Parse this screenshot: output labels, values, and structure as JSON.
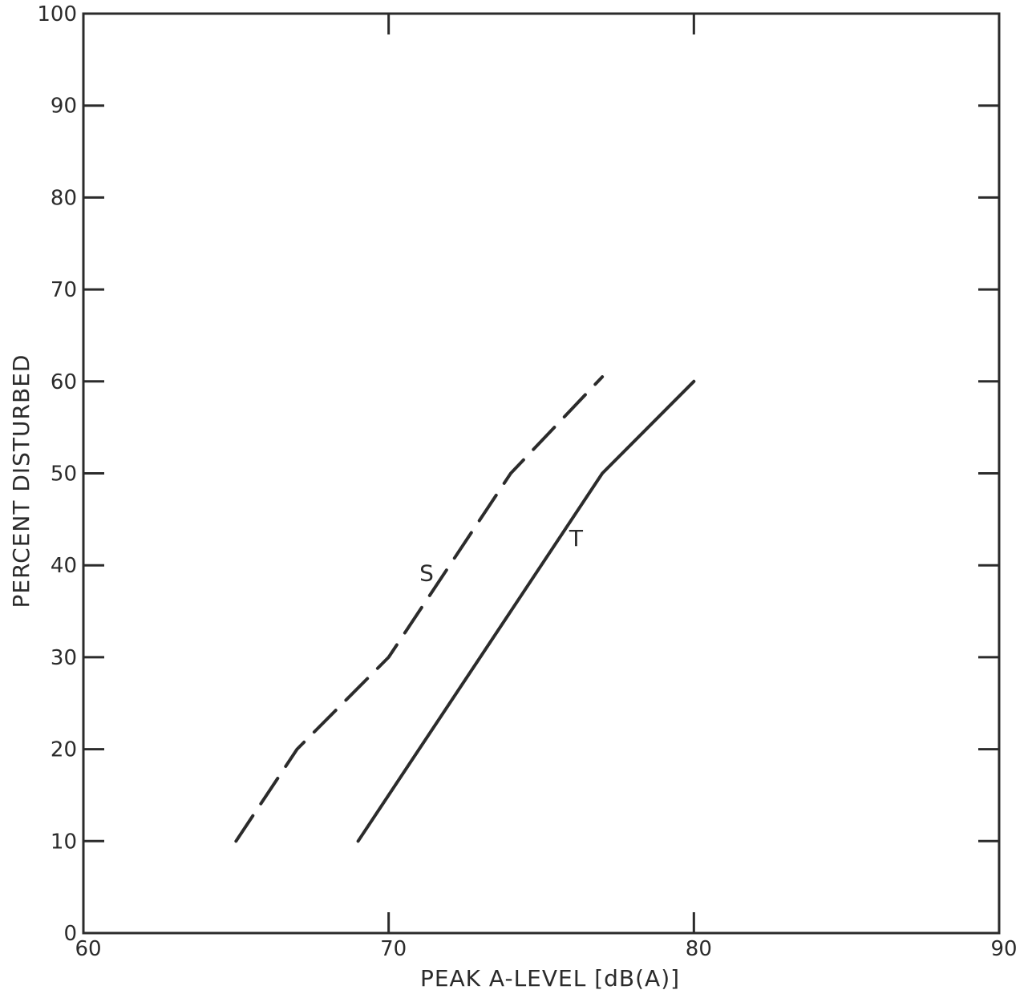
{
  "chart_data": {
    "type": "line",
    "xlabel": "PEAK A-LEVEL [dB(A)]",
    "ylabel": "PERCENT DISTURBED",
    "xlim": [
      60,
      90
    ],
    "ylim": [
      0,
      100
    ],
    "xticks": [
      "60",
      "70",
      "80",
      "90"
    ],
    "yticks": [
      "0",
      "10",
      "20",
      "30",
      "40",
      "50",
      "60",
      "70",
      "80",
      "90",
      "100"
    ],
    "grid": false,
    "series": [
      {
        "name": "S",
        "style": "dashed",
        "color": "#2b2b2b",
        "x": [
          65,
          67,
          70,
          74,
          77
        ],
        "y": [
          10,
          20,
          30,
          50,
          60.5
        ]
      },
      {
        "name": "T",
        "style": "solid",
        "color": "#2b2b2b",
        "x": [
          69,
          77,
          80
        ],
        "y": [
          10,
          50,
          60
        ]
      }
    ]
  }
}
